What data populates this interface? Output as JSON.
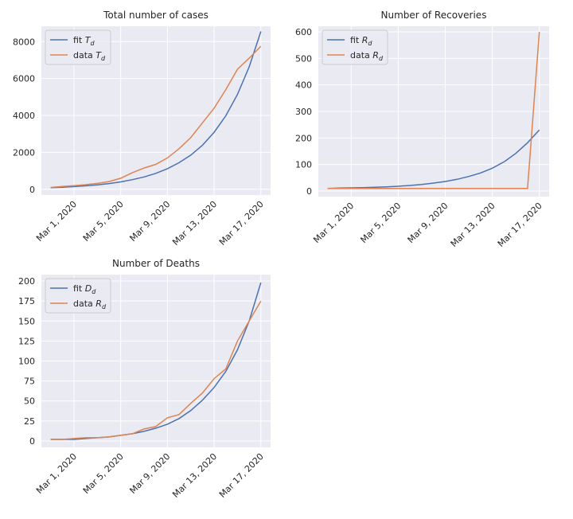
{
  "chart_data": [
    {
      "type": "line",
      "title": "Total number of cases",
      "x": [
        "2020-02-28",
        "2020-02-29",
        "2020-03-01",
        "2020-03-02",
        "2020-03-03",
        "2020-03-04",
        "2020-03-05",
        "2020-03-06",
        "2020-03-07",
        "2020-03-08",
        "2020-03-09",
        "2020-03-10",
        "2020-03-11",
        "2020-03-12",
        "2020-03-13",
        "2020-03-14",
        "2020-03-15",
        "2020-03-16",
        "2020-03-17"
      ],
      "xlim": [
        "2020-02-27T05:00Z",
        "2020-03-17T20:00Z"
      ],
      "xticks": [
        {
          "value": "2020-03-01",
          "label": "Mar 1, 2020"
        },
        {
          "value": "2020-03-05",
          "label": "Mar 5, 2020"
        },
        {
          "value": "2020-03-09",
          "label": "Mar 9, 2020"
        },
        {
          "value": "2020-03-13",
          "label": "Mar 13, 2020"
        },
        {
          "value": "2020-03-17",
          "label": "Mar 17, 2020"
        }
      ],
      "ylim": [
        -310,
        8830
      ],
      "yticks": [
        0,
        2000,
        4000,
        6000,
        8000
      ],
      "grid": true,
      "legend": "upper left",
      "series": [
        {
          "name": "fit Td",
          "color": "#4c72b0",
          "values": [
            87,
            113,
            145,
            188,
            242,
            312,
            403,
            520,
            670,
            864,
            1115,
            1440,
            1850,
            2390,
            3090,
            3980,
            5140,
            6630,
            8550
          ]
        },
        {
          "name": "data Td",
          "color": "#dd8452",
          "values": [
            100,
            150,
            200,
            250,
            320,
            420,
            600,
            900,
            1150,
            1350,
            1700,
            2200,
            2800,
            3600,
            4400,
            5400,
            6500,
            7100,
            7750
          ]
        }
      ]
    },
    {
      "type": "line",
      "title": "Number of Recoveries",
      "x": [
        "2020-02-28",
        "2020-02-29",
        "2020-03-01",
        "2020-03-02",
        "2020-03-03",
        "2020-03-04",
        "2020-03-05",
        "2020-03-06",
        "2020-03-07",
        "2020-03-08",
        "2020-03-09",
        "2020-03-10",
        "2020-03-11",
        "2020-03-12",
        "2020-03-13",
        "2020-03-14",
        "2020-03-15",
        "2020-03-16",
        "2020-03-17"
      ],
      "xlim": [
        "2020-02-27T05:00Z",
        "2020-03-17T20:00Z"
      ],
      "xticks": [
        {
          "value": "2020-03-01",
          "label": "Mar 1, 2020"
        },
        {
          "value": "2020-03-05",
          "label": "Mar 5, 2020"
        },
        {
          "value": "2020-03-09",
          "label": "Mar 9, 2020"
        },
        {
          "value": "2020-03-13",
          "label": "Mar 13, 2020"
        },
        {
          "value": "2020-03-17",
          "label": "Mar 17, 2020"
        }
      ],
      "ylim": [
        -21,
        621
      ],
      "yticks": [
        0,
        100,
        200,
        300,
        400,
        500,
        600
      ],
      "grid": true,
      "legend": "upper left",
      "series": [
        {
          "name": "fit Rd",
          "color": "#4c72b0",
          "values": [
            10,
            11,
            12,
            13,
            14,
            16,
            18,
            21,
            25,
            30,
            36,
            44,
            55,
            68,
            86,
            110,
            142,
            182,
            230
          ]
        },
        {
          "name": "data Rd",
          "color": "#dd8452",
          "values": [
            10,
            10,
            10,
            10,
            10,
            10,
            10,
            10,
            10,
            10,
            10,
            10,
            10,
            10,
            10,
            10,
            10,
            10,
            600
          ]
        }
      ]
    },
    {
      "type": "line",
      "title": "Number of Deaths",
      "x": [
        "2020-02-28",
        "2020-02-29",
        "2020-03-01",
        "2020-03-02",
        "2020-03-03",
        "2020-03-04",
        "2020-03-05",
        "2020-03-06",
        "2020-03-07",
        "2020-03-08",
        "2020-03-09",
        "2020-03-10",
        "2020-03-11",
        "2020-03-12",
        "2020-03-13",
        "2020-03-14",
        "2020-03-15",
        "2020-03-16",
        "2020-03-17"
      ],
      "xlim": [
        "2020-02-27T05:00Z",
        "2020-03-17T20:00Z"
      ],
      "xticks": [
        {
          "value": "2020-03-01",
          "label": "Mar 1, 2020"
        },
        {
          "value": "2020-03-05",
          "label": "Mar 5, 2020"
        },
        {
          "value": "2020-03-09",
          "label": "Mar 9, 2020"
        },
        {
          "value": "2020-03-13",
          "label": "Mar 13, 2020"
        },
        {
          "value": "2020-03-17",
          "label": "Mar 17, 2020"
        }
      ],
      "ylim": [
        -8,
        208
      ],
      "yticks": [
        0,
        25,
        50,
        75,
        100,
        125,
        150,
        175,
        200
      ],
      "grid": true,
      "legend": "upper left",
      "series": [
        {
          "name": "fit Dd",
          "color": "#4c72b0",
          "values": [
            2,
            2,
            2,
            3,
            4,
            5,
            7,
            9,
            12,
            16,
            21,
            28,
            38,
            51,
            67,
            87,
            114,
            150,
            198
          ]
        },
        {
          "name": "data Rd",
          "color": "#dd8452",
          "values": [
            2,
            2,
            3,
            4,
            4,
            5,
            7,
            9,
            15,
            18,
            29,
            33,
            47,
            60,
            78,
            90,
            125,
            150,
            175
          ]
        }
      ]
    }
  ]
}
